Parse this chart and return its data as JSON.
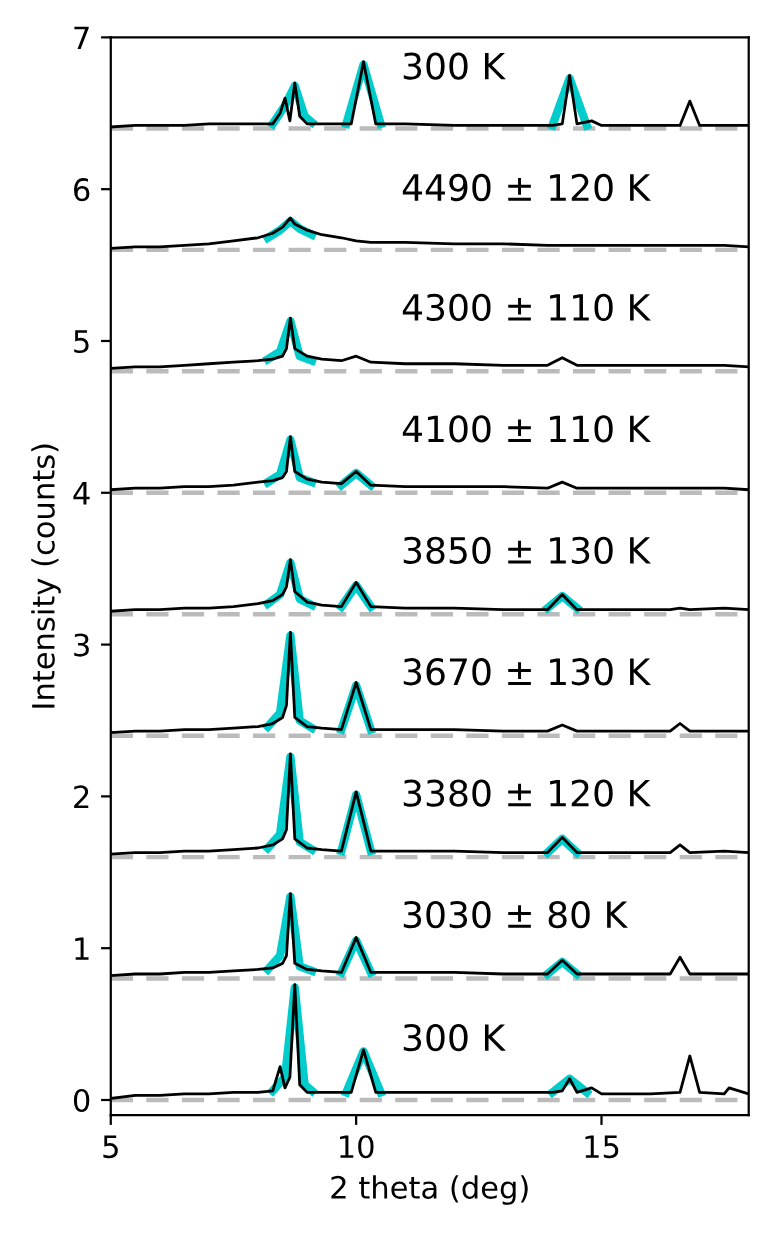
{
  "chart_data": {
    "type": "line",
    "xlabel": "2 theta (deg)",
    "ylabel": "Intensity (counts)",
    "xlim": [
      5,
      18
    ],
    "ylim": [
      -0.1,
      7
    ],
    "xticks": [
      5,
      10,
      15
    ],
    "yticks": [
      0,
      1,
      2,
      3,
      4,
      5,
      6,
      7
    ],
    "grid": false,
    "legend": false,
    "line_style": "solid",
    "marker": "none",
    "ref_lines": [
      {
        "axis": "y",
        "value": 0,
        "color": "#bbbbbb",
        "line_style": "dashed"
      },
      {
        "axis": "y",
        "value": 0.8,
        "color": "#bbbbbb",
        "line_style": "dashed"
      },
      {
        "axis": "y",
        "value": 1.6,
        "color": "#bbbbbb",
        "line_style": "dashed"
      },
      {
        "axis": "y",
        "value": 2.4,
        "color": "#bbbbbb",
        "line_style": "dashed"
      },
      {
        "axis": "y",
        "value": 3.2,
        "color": "#bbbbbb",
        "line_style": "dashed"
      },
      {
        "axis": "y",
        "value": 4.0,
        "color": "#bbbbbb",
        "line_style": "dashed"
      },
      {
        "axis": "y",
        "value": 4.8,
        "color": "#bbbbbb",
        "line_style": "dashed"
      },
      {
        "axis": "y",
        "value": 5.6,
        "color": "#bbbbbb",
        "line_style": "dashed"
      },
      {
        "axis": "y",
        "value": 6.4,
        "color": "#bbbbbb",
        "line_style": "dashed"
      }
    ],
    "series": [
      {
        "color": "#00cccc",
        "x": [
          8.3,
          8.55,
          8.75,
          8.95,
          9.1,
          9.4,
          9.8,
          10.15,
          10.5,
          12,
          14.0,
          14.35,
          14.7
        ],
        "values": [
          0.06,
          0.15,
          0.74,
          0.1,
          0.06,
          null,
          0.05,
          0.32,
          0.05,
          null,
          0.05,
          0.14,
          0.05
        ]
      },
      {
        "color": "#00cccc",
        "x": [
          8.2,
          8.45,
          8.66,
          8.85,
          9.1,
          9.4,
          9.7,
          10.0,
          10.3,
          12,
          13.9,
          14.2,
          14.5
        ],
        "values": [
          0.86,
          0.95,
          1.34,
          0.88,
          0.85,
          null,
          0.84,
          1.05,
          0.84,
          null,
          0.83,
          0.91,
          0.83
        ]
      },
      {
        "color": "#00cccc",
        "x": [
          8.2,
          8.45,
          8.66,
          8.85,
          9.1,
          9.4,
          9.7,
          10.0,
          10.3,
          12,
          13.9,
          14.2,
          14.5
        ],
        "values": [
          1.66,
          1.75,
          2.26,
          1.7,
          1.65,
          null,
          1.64,
          2.01,
          1.64,
          null,
          1.63,
          1.72,
          1.63
        ]
      },
      {
        "color": "#00cccc",
        "x": [
          8.2,
          8.45,
          8.66,
          8.85,
          9.1,
          9.4,
          9.7,
          10.0,
          10.3
        ],
        "values": [
          2.46,
          2.55,
          3.06,
          2.5,
          2.45,
          null,
          2.44,
          2.73,
          2.44
        ]
      },
      {
        "color": "#00cccc",
        "x": [
          8.2,
          8.45,
          8.66,
          8.85,
          9.1,
          9.4,
          9.7,
          10.0,
          10.3,
          12,
          13.9,
          14.2,
          14.5
        ],
        "values": [
          3.27,
          3.33,
          3.54,
          3.3,
          3.26,
          null,
          3.25,
          3.39,
          3.25,
          null,
          3.24,
          3.32,
          3.24
        ]
      },
      {
        "color": "#00cccc",
        "x": [
          8.2,
          8.45,
          8.66,
          8.85,
          9.1,
          9.4,
          9.7,
          10.0,
          10.3
        ],
        "values": [
          4.07,
          4.12,
          4.35,
          4.1,
          4.07,
          null,
          4.05,
          4.13,
          4.05
        ]
      },
      {
        "color": "#00cccc",
        "x": [
          8.2,
          8.45,
          8.66,
          8.85,
          9.1
        ],
        "values": [
          4.88,
          4.93,
          5.13,
          4.9,
          4.87
        ]
      },
      {
        "color": "#00cccc",
        "x": [
          8.2,
          8.45,
          8.66,
          8.85,
          9.1
        ],
        "values": [
          5.68,
          5.73,
          5.79,
          5.74,
          5.7
        ]
      },
      {
        "color": "#00cccc",
        "x": [
          8.3,
          8.55,
          8.75,
          8.95,
          9.1,
          9.4,
          9.8,
          10.15,
          10.5,
          12,
          14.0,
          14.35,
          14.7
        ],
        "values": [
          6.43,
          6.55,
          6.68,
          6.48,
          6.44,
          null,
          6.43,
          6.82,
          6.43,
          null,
          6.42,
          6.73,
          6.42
        ]
      },
      {
        "name": "300 K",
        "color": "#000000",
        "x": [
          5,
          5.5,
          6,
          6.5,
          7,
          7.5,
          8,
          8.3,
          8.45,
          8.55,
          8.65,
          8.75,
          8.85,
          9,
          9.5,
          9.9,
          10.15,
          10.4,
          11,
          12,
          13,
          14,
          14.2,
          14.35,
          14.5,
          14.8,
          15,
          16,
          16.6,
          16.8,
          17,
          17.5,
          17.6,
          18
        ],
        "values": [
          0.01,
          0.03,
          0.03,
          0.04,
          0.04,
          0.05,
          0.05,
          0.06,
          0.22,
          0.08,
          0.15,
          0.76,
          0.1,
          0.05,
          0.05,
          0.05,
          0.33,
          0.05,
          0.05,
          0.05,
          0.05,
          0.05,
          0.06,
          0.14,
          0.05,
          0.08,
          0.04,
          0.04,
          0.05,
          0.29,
          0.05,
          0.04,
          0.08,
          0.04
        ]
      },
      {
        "name": "3030 ± 80 K",
        "color": "#000000",
        "x": [
          5,
          5.5,
          6,
          6.5,
          7,
          7.5,
          8,
          8.3,
          8.5,
          8.58,
          8.66,
          8.75,
          9,
          9.3,
          9.7,
          10.0,
          10.3,
          11,
          12,
          13,
          13.9,
          14.2,
          14.5,
          15,
          16,
          16.4,
          16.6,
          16.8,
          17.5,
          18
        ],
        "values": [
          0.82,
          0.83,
          0.83,
          0.84,
          0.84,
          0.85,
          0.86,
          0.87,
          0.9,
          0.95,
          1.36,
          0.9,
          0.86,
          0.85,
          0.84,
          1.07,
          0.84,
          0.84,
          0.84,
          0.83,
          0.83,
          0.92,
          0.83,
          0.83,
          0.83,
          0.83,
          0.94,
          0.83,
          0.83,
          0.83
        ]
      },
      {
        "name": "3380 ± 120 K",
        "color": "#000000",
        "x": [
          5,
          5.5,
          6,
          6.5,
          7,
          7.5,
          8,
          8.3,
          8.5,
          8.58,
          8.66,
          8.75,
          9,
          9.3,
          9.7,
          10.0,
          10.3,
          11,
          12,
          13,
          13.9,
          14.2,
          14.5,
          15,
          16,
          16.4,
          16.6,
          16.8,
          17.5,
          18
        ],
        "values": [
          1.62,
          1.63,
          1.63,
          1.64,
          1.64,
          1.65,
          1.66,
          1.68,
          1.72,
          1.78,
          2.28,
          1.72,
          1.66,
          1.65,
          1.64,
          2.03,
          1.64,
          1.64,
          1.64,
          1.63,
          1.63,
          1.73,
          1.63,
          1.63,
          1.63,
          1.63,
          1.68,
          1.63,
          1.64,
          1.63
        ]
      },
      {
        "name": "3670 ± 130 K",
        "color": "#000000",
        "x": [
          5,
          5.5,
          6,
          6.5,
          7,
          7.5,
          8,
          8.3,
          8.5,
          8.58,
          8.66,
          8.75,
          9,
          9.3,
          9.7,
          10.0,
          10.3,
          11,
          12,
          13,
          13.9,
          14.2,
          14.5,
          15,
          16,
          16.4,
          16.6,
          16.8,
          17.5,
          18
        ],
        "values": [
          2.42,
          2.43,
          2.43,
          2.44,
          2.44,
          2.45,
          2.46,
          2.48,
          2.52,
          2.6,
          3.08,
          2.52,
          2.46,
          2.45,
          2.44,
          2.75,
          2.44,
          2.44,
          2.44,
          2.43,
          2.43,
          2.47,
          2.43,
          2.43,
          2.43,
          2.43,
          2.48,
          2.43,
          2.43,
          2.43
        ]
      },
      {
        "name": "3850 ± 130 K",
        "color": "#000000",
        "x": [
          5,
          5.5,
          6,
          6.5,
          7,
          7.5,
          8,
          8.3,
          8.5,
          8.58,
          8.66,
          8.75,
          9,
          9.3,
          9.7,
          10.0,
          10.3,
          11,
          12,
          13,
          13.9,
          14.2,
          14.5,
          15,
          16,
          16.4,
          16.6,
          16.8,
          17.5,
          18
        ],
        "values": [
          3.22,
          3.23,
          3.23,
          3.24,
          3.24,
          3.25,
          3.27,
          3.29,
          3.33,
          3.38,
          3.56,
          3.35,
          3.28,
          3.26,
          3.25,
          3.41,
          3.25,
          3.24,
          3.24,
          3.23,
          3.23,
          3.33,
          3.23,
          3.23,
          3.23,
          3.23,
          3.24,
          3.23,
          3.24,
          3.23
        ]
      },
      {
        "name": "4100 ± 110 K",
        "color": "#000000",
        "x": [
          5,
          5.5,
          6,
          6.5,
          7,
          7.5,
          8,
          8.3,
          8.5,
          8.58,
          8.66,
          8.75,
          9,
          9.3,
          9.7,
          10.0,
          10.3,
          11,
          12,
          13,
          13.9,
          14.2,
          14.5,
          15,
          16,
          16.4,
          16.6,
          16.8,
          17.5,
          18
        ],
        "values": [
          4.02,
          4.03,
          4.03,
          4.04,
          4.04,
          4.05,
          4.07,
          4.08,
          4.1,
          4.14,
          4.37,
          4.14,
          4.09,
          4.07,
          4.06,
          4.14,
          4.05,
          4.04,
          4.04,
          4.04,
          4.03,
          4.07,
          4.03,
          4.03,
          4.03,
          4.03,
          4.03,
          4.03,
          4.03,
          4.02
        ]
      },
      {
        "name": "4300 ± 110 K",
        "color": "#000000",
        "x": [
          5,
          5.5,
          6,
          6.5,
          7,
          7.5,
          8,
          8.3,
          8.5,
          8.58,
          8.66,
          8.75,
          9,
          9.3,
          9.7,
          10.0,
          10.3,
          11,
          12,
          13,
          13.9,
          14.2,
          14.5,
          15,
          16,
          16.4,
          16.6,
          16.8,
          17.5,
          18
        ],
        "values": [
          4.82,
          4.83,
          4.83,
          4.84,
          4.85,
          4.86,
          4.87,
          4.88,
          4.9,
          4.95,
          5.15,
          4.95,
          4.9,
          4.88,
          4.87,
          4.9,
          4.86,
          4.85,
          4.85,
          4.84,
          4.84,
          4.89,
          4.84,
          4.84,
          4.84,
          4.84,
          4.84,
          4.84,
          4.84,
          4.83
        ]
      },
      {
        "name": "4490 ± 120 K",
        "color": "#000000",
        "x": [
          5,
          5.5,
          6,
          6.5,
          7,
          7.5,
          8,
          8.3,
          8.5,
          8.58,
          8.66,
          8.75,
          9,
          9.3,
          9.7,
          10.0,
          10.3,
          11,
          12,
          13,
          13.9,
          14.2,
          14.5,
          15,
          16,
          16.4,
          16.6,
          16.8,
          17.5,
          18
        ],
        "values": [
          5.61,
          5.62,
          5.62,
          5.63,
          5.64,
          5.66,
          5.68,
          5.71,
          5.75,
          5.78,
          5.81,
          5.77,
          5.73,
          5.7,
          5.68,
          5.66,
          5.65,
          5.65,
          5.64,
          5.64,
          5.63,
          5.63,
          5.63,
          5.63,
          5.63,
          5.63,
          5.63,
          5.63,
          5.63,
          5.62
        ]
      },
      {
        "name": "300 K",
        "color": "#000000",
        "x": [
          5,
          5.5,
          6,
          6.5,
          7,
          7.5,
          8,
          8.3,
          8.45,
          8.55,
          8.65,
          8.75,
          8.85,
          9,
          9.5,
          9.9,
          10.15,
          10.4,
          11,
          12,
          13,
          14,
          14.2,
          14.35,
          14.5,
          14.8,
          15,
          16,
          16.6,
          16.8,
          17,
          17.5,
          17.6,
          18
        ],
        "values": [
          6.41,
          6.42,
          6.42,
          6.42,
          6.43,
          6.43,
          6.43,
          6.43,
          6.5,
          6.6,
          6.45,
          6.7,
          6.48,
          6.43,
          6.43,
          6.43,
          6.84,
          6.43,
          6.43,
          6.42,
          6.42,
          6.42,
          6.43,
          6.75,
          6.43,
          6.45,
          6.42,
          6.42,
          6.42,
          6.58,
          6.42,
          6.42,
          6.42,
          6.42
        ]
      }
    ]
  }
}
